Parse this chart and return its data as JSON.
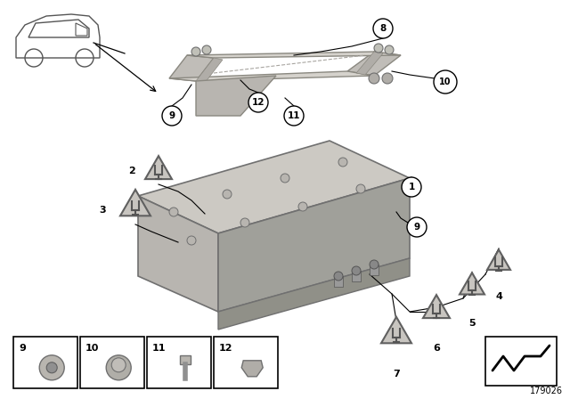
{
  "bg_color": "#ffffff",
  "diagram_id": "179026",
  "bracket_face": "#c8c5c0",
  "bracket_edge": "#8a8880",
  "bracket_shadow": "#a8a5a0",
  "box_top": "#ccc9c3",
  "box_left": "#b8b5b0",
  "box_right": "#a0a09a",
  "box_edge": "#707070",
  "car_color": "#555555",
  "line_color": "#000000",
  "tri_face": "#c8c5c0",
  "tri_edge": "#606060",
  "legend_items": [
    "9",
    "10",
    "11",
    "12"
  ]
}
